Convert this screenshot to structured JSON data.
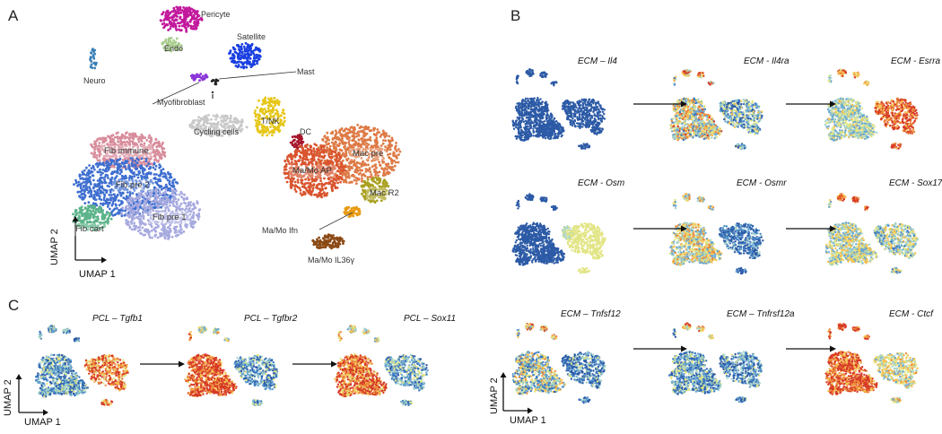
{
  "panels": {
    "a": "A",
    "b": "B",
    "c": "C"
  },
  "panel_a": {
    "umap1": "UMAP 1",
    "umap2": "UMAP 2",
    "clusters": {
      "pericyte": "Pericyte",
      "endo": "Endo",
      "satellite": "Satellite",
      "mast": "Mast",
      "neuro": "Neuro",
      "myofibroblast": "Myofibroblast",
      "cycling": "Cycling cells",
      "tnk": "T/NK",
      "dc": "DC",
      "fib_immune": "Fib immune",
      "fib_pre2": "Fib pre 2",
      "fib_pre1": "Fib pre 1",
      "fib_cart": "Fib cart",
      "mac_pre": "Mac pre",
      "mamo_ap": "Ma/Mo AP",
      "mac_r2": "Mac R2",
      "mamo_ifn": "Ma/Mo Ifn",
      "mamo_il36": "Ma/Mo IL36γ"
    },
    "colors": {
      "pericyte": "#c2189c",
      "endo": "#a8cc8c",
      "satellite": "#1a3fe0",
      "neuro": "#3a7fb5",
      "myofibroblast": "#8a35d8",
      "mast": "#222222",
      "cycling": "#c9c9c9",
      "tnk": "#e6c619",
      "dc": "#a6142a",
      "fib_immune": "#d88c9b",
      "fib_pre2": "#3f6fd0",
      "fib_pre1": "#a7aadf",
      "fib_cart": "#5cb48a",
      "mac_pre": "#de7a46",
      "mamo_ap": "#d9542e",
      "mac_r2": "#aaa020",
      "mamo_ifn": "#e89a12",
      "mamo_il36": "#8b4a14"
    }
  },
  "panel_b": {
    "rows": [
      [
        "ECM – Il4",
        "ECM - Il4ra",
        "ECM - Esrra"
      ],
      [
        "ECM - Osm",
        "ECM - Osmr",
        "ECM - Sox17"
      ],
      [
        "ECM – Tnfsf12",
        "ECM – Tnfrsf12a",
        "ECM - Ctcf"
      ]
    ],
    "umap1": "UMAP 1",
    "umap2": "UMAP 2"
  },
  "panel_c": {
    "plots": [
      "PCL – Tgfb1",
      "PCL – Tgfbr2",
      "PCL – Sox11"
    ],
    "umap1": "UMAP 1",
    "umap2": "UMAP 2"
  }
}
